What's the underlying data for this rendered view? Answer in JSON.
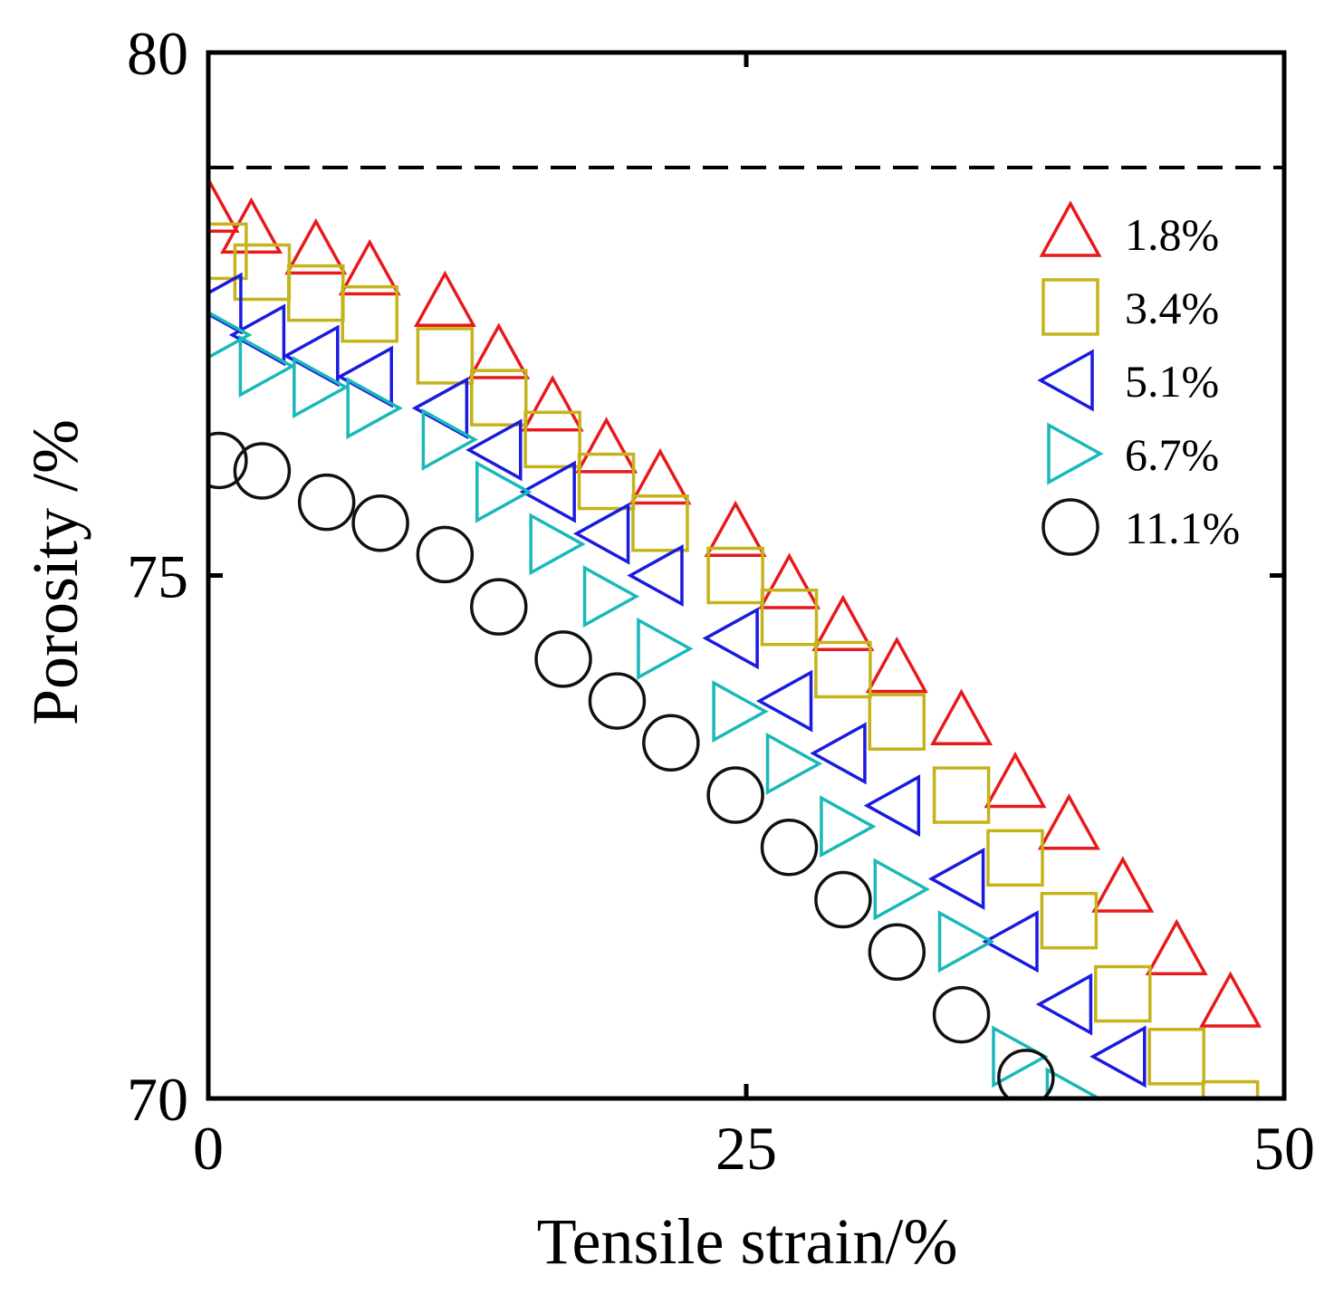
{
  "chart_data": {
    "type": "scatter",
    "title": "",
    "xlabel": "Tensile strain/%",
    "ylabel": "Porosity /%",
    "xlim": [
      0,
      50
    ],
    "ylim": [
      70,
      80
    ],
    "xticks": [
      "0",
      "25",
      "50"
    ],
    "yticks": [
      "70",
      "75",
      "80"
    ],
    "grid": false,
    "legend_position": "top-right",
    "reference_line": {
      "y": 78.9,
      "style": "dashed",
      "color": "#000000"
    },
    "series": [
      {
        "name": "1.8%",
        "marker": "triangle-up",
        "color": "#e8191a",
        "x": [
          0,
          2,
          5,
          7.5,
          11,
          13.5,
          16,
          18.5,
          21,
          24.5,
          27,
          29.5,
          32,
          35,
          37.5,
          40,
          42.5,
          45,
          47.5
        ],
        "y": [
          78.5,
          78.3,
          78.1,
          77.9,
          77.6,
          77.1,
          76.6,
          76.2,
          75.9,
          75.4,
          74.9,
          74.5,
          74.1,
          73.6,
          73.0,
          72.6,
          72.0,
          71.4,
          70.9
        ]
      },
      {
        "name": "3.4%",
        "marker": "square",
        "color": "#c4b31a",
        "x": [
          0.5,
          2.5,
          5,
          7.5,
          11,
          13.5,
          16,
          18.5,
          21,
          24.5,
          27,
          29.5,
          32,
          35,
          37.5,
          40,
          42.5,
          45,
          47.5
        ],
        "y": [
          78.1,
          77.9,
          77.7,
          77.5,
          77.1,
          76.7,
          76.3,
          75.9,
          75.5,
          75.0,
          74.6,
          74.1,
          73.6,
          72.9,
          72.3,
          71.7,
          71.0,
          70.4,
          69.9
        ]
      },
      {
        "name": "5.1%",
        "marker": "triangle-left",
        "color": "#1a1ae0",
        "x": [
          0.5,
          2.5,
          5,
          7.5,
          11,
          13.5,
          16,
          18.5,
          21,
          24.5,
          27,
          29.5,
          32,
          35,
          37.5,
          40,
          42.5
        ],
        "y": [
          77.6,
          77.3,
          77.1,
          76.9,
          76.6,
          76.2,
          75.8,
          75.4,
          75.0,
          74.4,
          73.8,
          73.3,
          72.8,
          72.1,
          71.5,
          70.9,
          70.4
        ]
      },
      {
        "name": "6.7%",
        "marker": "triangle-right",
        "color": "#1ab8b8",
        "x": [
          0.5,
          2.5,
          5,
          7.5,
          11,
          13.5,
          16,
          18.5,
          21,
          24.5,
          27,
          29.5,
          32,
          35,
          37.5,
          40
        ],
        "y": [
          77.3,
          77.0,
          76.8,
          76.6,
          76.3,
          75.8,
          75.3,
          74.8,
          74.3,
          73.7,
          73.2,
          72.6,
          72.0,
          71.5,
          70.4,
          70.0
        ]
      },
      {
        "name": "11.1%",
        "marker": "circle",
        "color": "#111111",
        "x": [
          0.5,
          2.5,
          5.5,
          8,
          11,
          13.5,
          16.5,
          19,
          21.5,
          24.5,
          27,
          29.5,
          32,
          35,
          38
        ],
        "y": [
          76.1,
          76.0,
          75.7,
          75.5,
          75.2,
          74.7,
          74.2,
          73.8,
          73.4,
          72.9,
          72.4,
          71.9,
          71.4,
          70.8,
          70.2
        ]
      }
    ]
  }
}
